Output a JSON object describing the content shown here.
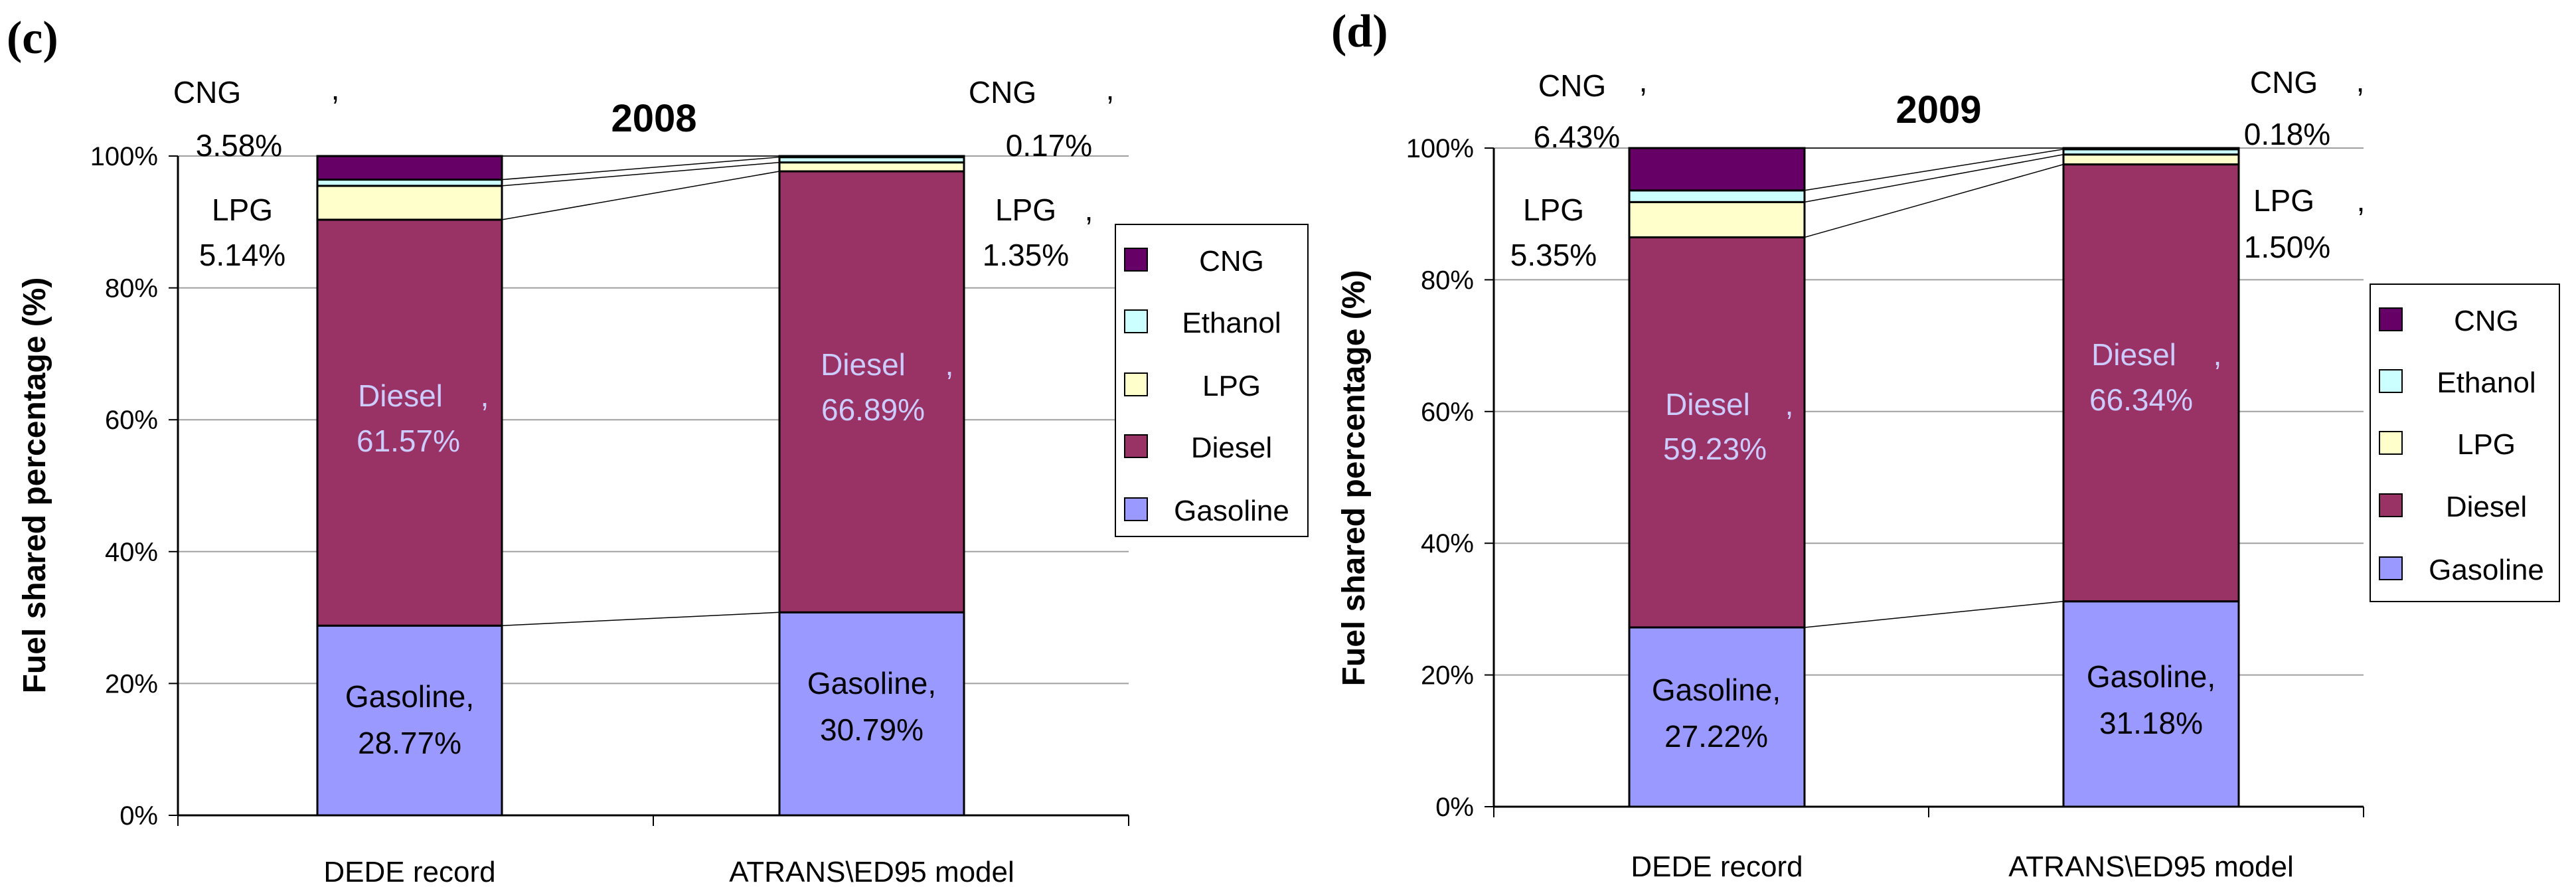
{
  "chart_data": [
    {
      "type": "bar",
      "stacked": true,
      "panel_label": "(c)",
      "title": "2008",
      "xlabel": "",
      "ylabel": "Fuel shared percentage (%)",
      "ylim": [
        0,
        100
      ],
      "yticks": [
        "0%",
        "20%",
        "40%",
        "60%",
        "80%",
        "100%"
      ],
      "categories": [
        "DEDE record",
        "ATRANS\\ED95 model"
      ],
      "series": [
        {
          "name": "Gasoline",
          "values": [
            28.77,
            30.79
          ],
          "color": "#9999ff"
        },
        {
          "name": "Diesel",
          "values": [
            61.57,
            66.89
          ],
          "color": "#993366"
        },
        {
          "name": "LPG",
          "values": [
            5.14,
            1.35
          ],
          "color": "#ffffcc"
        },
        {
          "name": "Ethanol",
          "values": [
            0.94,
            0.8
          ],
          "color": "#ccffff"
        },
        {
          "name": "CNG",
          "values": [
            3.58,
            0.17
          ],
          "color": "#660066"
        }
      ],
      "legend": [
        "CNG",
        "Ethanol",
        "LPG",
        "Diesel",
        "Gasoline"
      ],
      "legend_position": "right",
      "annotations": {
        "gasoline": [
          "Gasoline,",
          "28.77%",
          "Gasoline,",
          "30.79%"
        ],
        "diesel": [
          "Diesel",
          ",",
          "61.57%",
          "Diesel",
          ",",
          "66.89%"
        ],
        "lpg": [
          "LPG",
          "5.14%",
          "LPG",
          ",",
          "1.35%"
        ],
        "cng": [
          "CNG",
          ",",
          "3.58%",
          "CNG",
          ",",
          "0.17%"
        ]
      }
    },
    {
      "type": "bar",
      "stacked": true,
      "panel_label": "(d)",
      "title": "2009",
      "xlabel": "",
      "ylabel": "Fuel shared percentage (%)",
      "ylim": [
        0,
        100
      ],
      "yticks": [
        "0%",
        "20%",
        "40%",
        "60%",
        "80%",
        "100%"
      ],
      "categories": [
        "DEDE record",
        "ATRANS\\ED95 model"
      ],
      "series": [
        {
          "name": "Gasoline",
          "values": [
            27.22,
            31.18
          ],
          "color": "#9999ff"
        },
        {
          "name": "Diesel",
          "values": [
            59.23,
            66.34
          ],
          "color": "#993366"
        },
        {
          "name": "LPG",
          "values": [
            5.35,
            1.5
          ],
          "color": "#ffffcc"
        },
        {
          "name": "Ethanol",
          "values": [
            1.77,
            0.8
          ],
          "color": "#ccffff"
        },
        {
          "name": "CNG",
          "values": [
            6.43,
            0.18
          ],
          "color": "#660066"
        }
      ],
      "legend": [
        "CNG",
        "Ethanol",
        "LPG",
        "Diesel",
        "Gasoline"
      ],
      "legend_position": "right",
      "annotations": {
        "gasoline": [
          "Gasoline,",
          "27.22%",
          "Gasoline,",
          "31.18%"
        ],
        "diesel": [
          "Diesel",
          ",",
          "59.23%",
          "Diesel",
          ",",
          "66.34%"
        ],
        "lpg": [
          "LPG",
          "5.35%",
          "LPG",
          ",",
          "1.50%"
        ],
        "cng": [
          "CNG",
          ",",
          "6.43%",
          "CNG",
          ",",
          "0.18%"
        ]
      }
    }
  ]
}
